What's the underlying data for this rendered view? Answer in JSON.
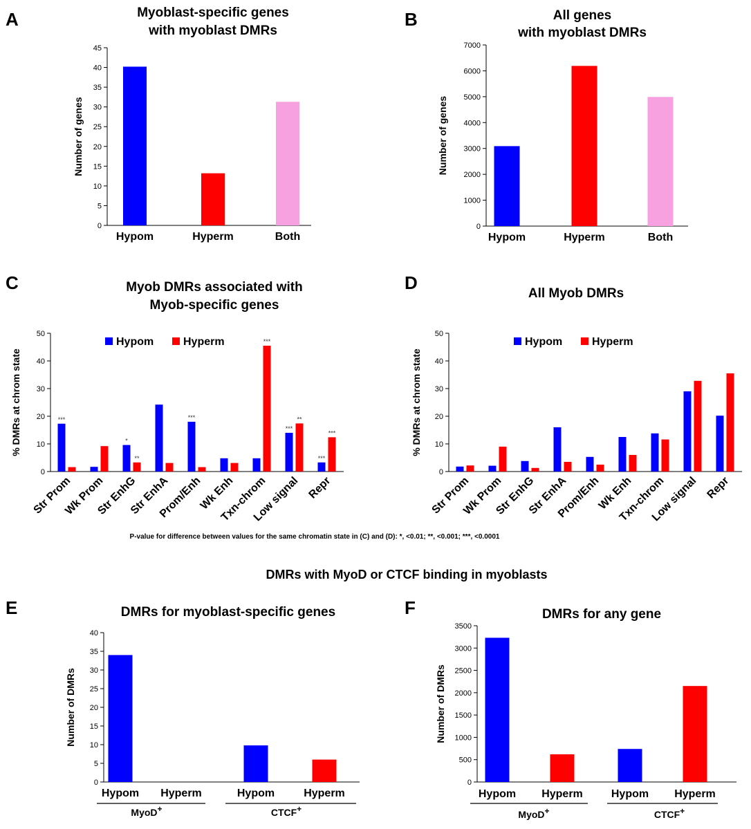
{
  "section_title": "DMRs with MyoD or CTCF binding in myoblasts",
  "footnote": "P-value for difference between values for the same chromatin state in (C) and (D): *, <0.01;  **, <0.001; ***, <0.0001",
  "colors": {
    "hypom": "#0000ff",
    "hyperm": "#ff0000",
    "both": "#f7a1e1"
  },
  "chart_data": [
    {
      "panel": "A",
      "type": "bar",
      "title": [
        "Myoblast-specific genes",
        "with myoblast DMRs"
      ],
      "ylabel": "Number  of genes",
      "categories": [
        "Hypom",
        "Hyperm",
        "Both"
      ],
      "values": [
        40.2,
        13.2,
        31.3
      ],
      "ylim": [
        0,
        45
      ],
      "yticks": [
        0,
        5,
        10,
        15,
        20,
        25,
        30,
        35,
        40,
        45
      ]
    },
    {
      "panel": "B",
      "type": "bar",
      "title": [
        "All genes",
        "with myoblast DMRs"
      ],
      "ylabel": "Number of genes",
      "categories": [
        "Hypom",
        "Hyperm",
        "Both"
      ],
      "values": [
        3090,
        6190,
        4990
      ],
      "ylim": [
        0,
        7000
      ],
      "yticks": [
        0,
        1000,
        2000,
        3000,
        4000,
        5000,
        6000,
        7000
      ]
    },
    {
      "panel": "C",
      "type": "bar",
      "title": [
        "Myob DMRs associated with",
        "Myob-specific genes"
      ],
      "ylabel": "% DMRs at chrom state",
      "categories": [
        "Str Prom",
        "Wk Prom",
        "Str EnhG",
        "Str EnhA",
        "Prom/Enh",
        "Wk Enh",
        "Txn-chrom",
        "Low signal",
        "Repr"
      ],
      "series": [
        {
          "name": "Hypom",
          "values": [
            17.3,
            1.7,
            9.6,
            24.2,
            18.0,
            4.8,
            4.8,
            14.0,
            3.3
          ],
          "stars": [
            "***",
            "",
            "*",
            "",
            "***",
            "",
            "",
            "***",
            "***"
          ]
        },
        {
          "name": "Hyperm",
          "values": [
            1.6,
            9.2,
            3.3,
            3.1,
            1.6,
            3.1,
            45.5,
            17.4,
            12.4
          ],
          "stars": [
            "",
            "",
            "**",
            "",
            "",
            "",
            "***",
            "**",
            "***"
          ]
        }
      ],
      "ylim": [
        0,
        50
      ],
      "yticks": [
        0,
        10,
        20,
        30,
        40,
        50
      ],
      "legend": "top"
    },
    {
      "panel": "D",
      "type": "bar",
      "title": [
        "All Myob DMRs"
      ],
      "ylabel": "% DMRs at chrom state",
      "categories": [
        "Str Prom",
        "Wk Prom",
        "Str EnhG",
        "Str EnhA",
        "Prom/Enh",
        "Wk Enh",
        "Txn-chrom",
        "Low signal",
        "Repr"
      ],
      "series": [
        {
          "name": "Hypom",
          "values": [
            1.8,
            2.1,
            3.8,
            16.0,
            5.3,
            12.5,
            13.8,
            29.0,
            20.2
          ]
        },
        {
          "name": "Hyperm",
          "values": [
            2.2,
            9.0,
            1.3,
            3.5,
            2.5,
            6.0,
            11.6,
            32.8,
            35.5
          ]
        }
      ],
      "ylim": [
        0,
        50
      ],
      "yticks": [
        0,
        10,
        20,
        30,
        40,
        50
      ],
      "legend": "top"
    },
    {
      "panel": "E",
      "type": "bar",
      "title": [
        "DMRs for myoblast-specific genes"
      ],
      "ylabel": "Number of DMRs",
      "categories": [
        "Hypom",
        "Hyperm",
        "Hypom",
        "Hyperm"
      ],
      "groups": [
        {
          "label": "MyoD",
          "sup": "+"
        },
        {
          "label": "CTCF",
          "sup": "+"
        }
      ],
      "values": [
        34,
        0,
        9.8,
        6
      ],
      "ylim": [
        0,
        40
      ],
      "yticks": [
        0,
        5,
        10,
        15,
        20,
        25,
        30,
        35,
        40
      ]
    },
    {
      "panel": "F",
      "type": "bar",
      "title": [
        "DMRs for any gene"
      ],
      "ylabel": "Number of DMRs",
      "categories": [
        "Hypom",
        "Hyperm",
        "Hypom",
        "Hyperm"
      ],
      "groups": [
        {
          "label": "MyoD",
          "sup": "+"
        },
        {
          "label": "CTCF",
          "sup": "+"
        }
      ],
      "values": [
        3230,
        620,
        740,
        2150
      ],
      "ylim": [
        0,
        3500
      ],
      "yticks": [
        0,
        500,
        1000,
        1500,
        2000,
        2500,
        3000,
        3500
      ]
    }
  ]
}
